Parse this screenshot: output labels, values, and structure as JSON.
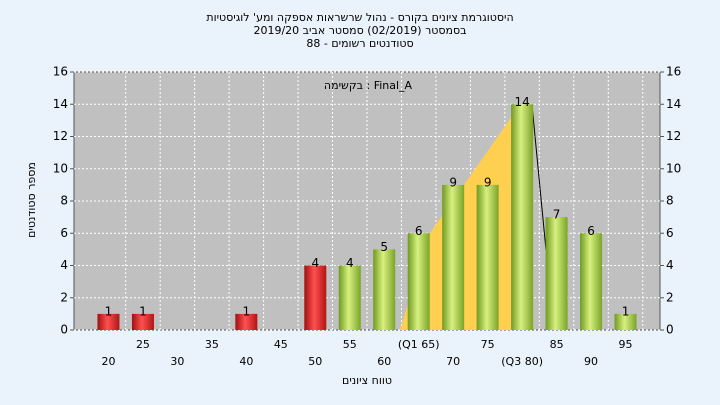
{
  "chart_data": {
    "type": "bar",
    "title": "היסטוגרמת ציונים בקורס - נהול שרשראות אספקה ומע' לוגיסטיות",
    "subtitle": "בסמסטר (02/2019)  סמסטר אביב 2019/20",
    "subtitle2": "סטודנטים רשומים - 88",
    "annotation": "בקשימה : Final_A",
    "x_label": "טווח ציונים",
    "y_label": "מספר סטודנטים",
    "categories": [
      "20",
      "25",
      "30",
      "35",
      "40",
      "45",
      "50",
      "55",
      "60",
      "(Q1 65)",
      "70",
      "75",
      "(Q3 80)",
      "85",
      "90",
      "95"
    ],
    "values": [
      1,
      1,
      0,
      0,
      1,
      0,
      4,
      4,
      5,
      6,
      9,
      9,
      14,
      7,
      6,
      1
    ],
    "colors": [
      "red",
      "red",
      "red",
      "red",
      "red",
      "red",
      "red",
      "green",
      "green",
      "green",
      "green",
      "green",
      "green",
      "green",
      "green",
      "green"
    ],
    "ylim": [
      0,
      16
    ],
    "yticks": [
      0,
      2,
      4,
      6,
      8,
      10,
      12,
      14,
      16
    ],
    "y2lim": [
      0,
      16
    ],
    "y2ticks": [
      0,
      2,
      4,
      6,
      8,
      10,
      12,
      14,
      16
    ],
    "grid": true
  }
}
